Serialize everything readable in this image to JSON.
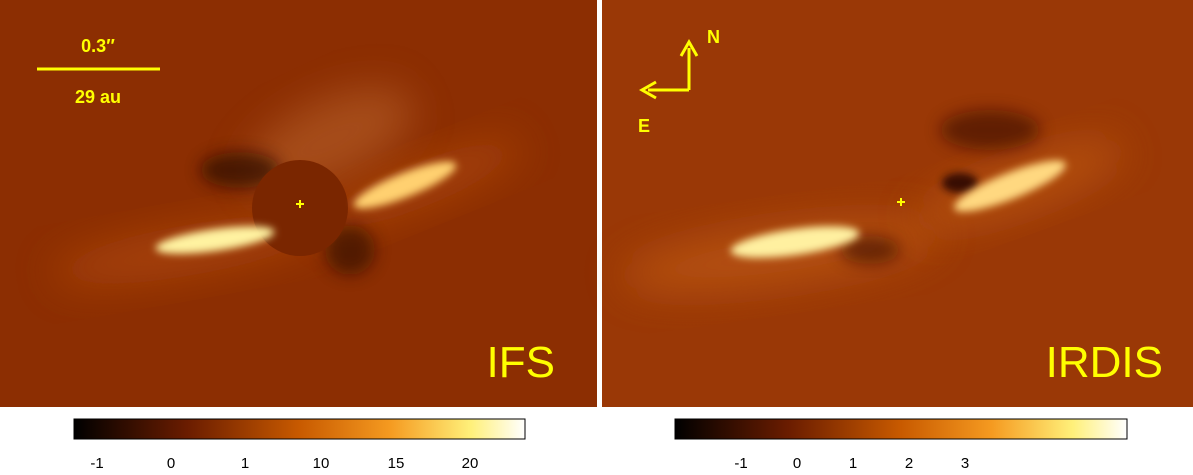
{
  "panels": [
    {
      "label": "IFS",
      "scale_bar": {
        "top": "0.3″",
        "bottom": "29 au"
      },
      "colorbar": {
        "ticks": [
          -1,
          0,
          1,
          10,
          15,
          20
        ]
      }
    },
    {
      "label": "IRDIS",
      "compass": {
        "north": "N",
        "east": "E"
      },
      "colorbar": {
        "ticks": [
          -1,
          0,
          1,
          2,
          3
        ]
      }
    }
  ]
}
